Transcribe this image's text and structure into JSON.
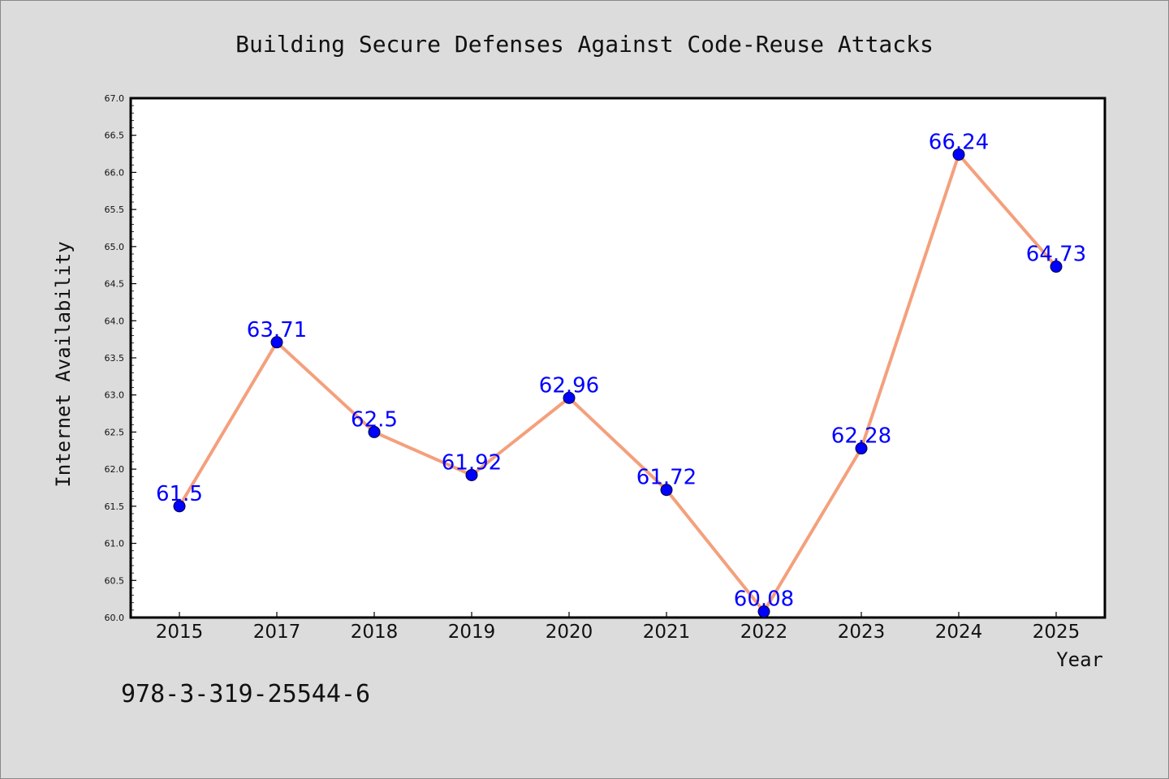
{
  "chart_data": {
    "type": "line",
    "title": "Building Secure Defenses Against Code-Reuse Attacks",
    "xlabel": "Year",
    "ylabel": "Internet Availability",
    "categories": [
      "2015",
      "2017",
      "2018",
      "2019",
      "2020",
      "2021",
      "2022",
      "2023",
      "2024",
      "2025"
    ],
    "values": [
      61.5,
      63.71,
      62.5,
      61.92,
      62.96,
      61.72,
      60.08,
      62.28,
      66.24,
      64.73
    ],
    "data_labels": [
      "61.5",
      "63.71",
      "62.5",
      "61.92",
      "62.96",
      "61.72",
      "60.08",
      "62.28",
      "66.24",
      "64.73"
    ],
    "ylim": [
      60.0,
      67.0
    ],
    "yticks": [
      60.0,
      60.5,
      61.0,
      61.5,
      62.0,
      62.5,
      63.0,
      63.5,
      64.0,
      64.5,
      65.0,
      65.5,
      66.0,
      66.5,
      67.0
    ],
    "ytick_labels": [
      "60.0",
      "60.5",
      "61.0",
      "61.5",
      "62.0",
      "62.5",
      "63.0",
      "63.5",
      "64.0",
      "64.5",
      "65.0",
      "65.5",
      "66.0",
      "66.5",
      "67.0"
    ],
    "grid": false,
    "legend": "none",
    "colors": {
      "line": "#f4a07c",
      "marker": "#0000ff",
      "data_label": "#0000ff",
      "plot_background": "#ffffff",
      "figure_background": "#dcdcdc"
    }
  },
  "annotation": "978-3-319-25544-6"
}
